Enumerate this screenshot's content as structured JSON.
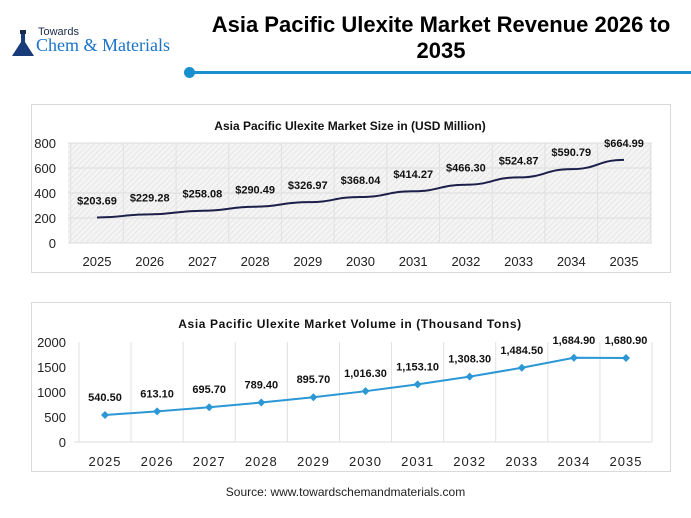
{
  "header": {
    "logo_small": "Towards",
    "logo_big": "Chem & Materials",
    "title": "Asia Pacific Ulexite Market Revenue 2026 to 2035"
  },
  "chart_data": [
    {
      "type": "line",
      "title": "Asia Pacific Ulexite Market Size in (USD Million)",
      "categories": [
        "2025",
        "2026",
        "2027",
        "2028",
        "2029",
        "2030",
        "2031",
        "2032",
        "2033",
        "2034",
        "2035"
      ],
      "values": [
        203.69,
        229.28,
        258.08,
        290.49,
        326.97,
        368.04,
        414.27,
        466.3,
        524.87,
        590.79,
        664.99
      ],
      "labels": [
        "$203.69",
        "$229.28",
        "$258.08",
        "$290.49",
        "$326.97",
        "$368.04",
        "$414.27",
        "$466.30",
        "$524.87",
        "$590.79",
        "$664.99"
      ],
      "yticks": [
        "0",
        "200",
        "400",
        "600",
        "800"
      ],
      "ylim": [
        0,
        800
      ],
      "grid": true,
      "color": "#1c1f4a",
      "markers": false
    },
    {
      "type": "line",
      "title": "Asia Pacific Ulexite Market Volume in (Thousand Tons)",
      "categories": [
        "2025",
        "2026",
        "2027",
        "2028",
        "2029",
        "2030",
        "2031",
        "2032",
        "2033",
        "2034",
        "2035"
      ],
      "values": [
        540.5,
        613.1,
        695.7,
        789.4,
        895.7,
        1016.3,
        1153.1,
        1308.3,
        1484.5,
        1684.9,
        1680.9
      ],
      "labels": [
        "540.50",
        "613.10",
        "695.70",
        "789.40",
        "895.70",
        "1,016.30",
        "1,153.10",
        "1,308.30",
        "1,484.50",
        "1,684.90",
        "1,680.90"
      ],
      "yticks": [
        "0",
        "500",
        "1000",
        "1500",
        "2000"
      ],
      "ylim": [
        0,
        2000
      ],
      "grid": true,
      "color": "#2b97d4",
      "markers": true
    }
  ],
  "footer": {
    "source": "Source: www.towardschemandmaterials.com"
  }
}
